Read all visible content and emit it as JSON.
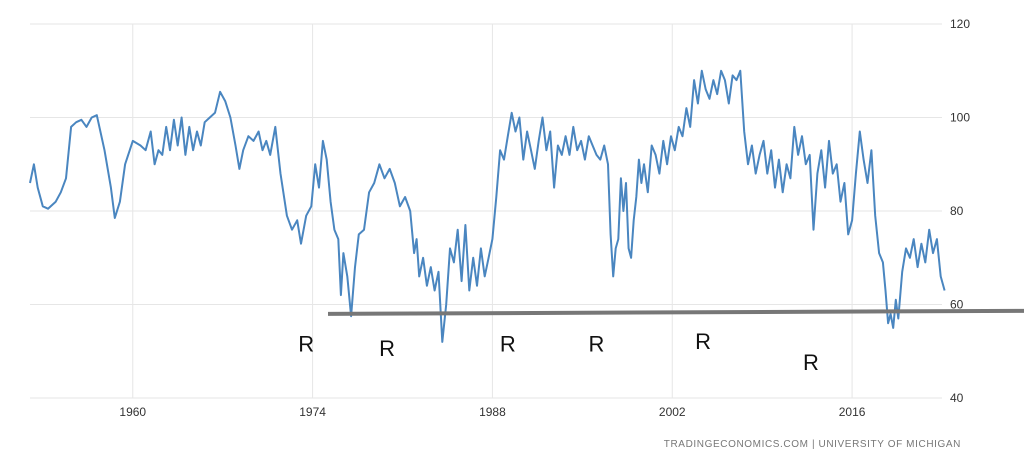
{
  "chart_data": {
    "type": "line",
    "title": "",
    "xlabel": "",
    "ylabel": "",
    "xlim": [
      1952,
      2023
    ],
    "ylim": [
      40,
      120
    ],
    "x_ticks": [
      1960,
      1974,
      1988,
      2002,
      2016
    ],
    "y_ticks": [
      40,
      60,
      80,
      100,
      120
    ],
    "y_axis_position": "right",
    "grid": true,
    "line_color": "#4a86c0",
    "series": [
      {
        "values": [
          [
            1952.0,
            86
          ],
          [
            1952.3,
            90
          ],
          [
            1952.6,
            85
          ],
          [
            1953.0,
            81
          ],
          [
            1953.4,
            80.5
          ],
          [
            1954.0,
            82
          ],
          [
            1954.4,
            84
          ],
          [
            1954.8,
            87
          ],
          [
            1955.2,
            98
          ],
          [
            1955.6,
            99
          ],
          [
            1956.0,
            99.5
          ],
          [
            1956.4,
            98
          ],
          [
            1956.8,
            100
          ],
          [
            1957.2,
            100.5
          ],
          [
            1957.8,
            93
          ],
          [
            1958.3,
            85
          ],
          [
            1958.6,
            78.5
          ],
          [
            1959.0,
            82
          ],
          [
            1959.4,
            90
          ],
          [
            1960.0,
            95
          ],
          [
            1960.6,
            94
          ],
          [
            1961.0,
            93
          ],
          [
            1961.4,
            97
          ],
          [
            1961.7,
            90
          ],
          [
            1962.0,
            93
          ],
          [
            1962.3,
            92
          ],
          [
            1962.6,
            98
          ],
          [
            1962.9,
            93
          ],
          [
            1963.2,
            99.5
          ],
          [
            1963.5,
            94
          ],
          [
            1963.8,
            100
          ],
          [
            1964.1,
            92
          ],
          [
            1964.4,
            98
          ],
          [
            1964.7,
            93
          ],
          [
            1965.0,
            97
          ],
          [
            1965.3,
            94
          ],
          [
            1965.6,
            99
          ],
          [
            1966.0,
            100
          ],
          [
            1966.4,
            101
          ],
          [
            1966.8,
            105.5
          ],
          [
            1967.2,
            103.5
          ],
          [
            1967.6,
            100
          ],
          [
            1968.0,
            94
          ],
          [
            1968.3,
            89
          ],
          [
            1968.6,
            93
          ],
          [
            1969.0,
            96
          ],
          [
            1969.4,
            95
          ],
          [
            1969.8,
            97
          ],
          [
            1970.1,
            93
          ],
          [
            1970.4,
            95
          ],
          [
            1970.7,
            92
          ],
          [
            1971.1,
            98
          ],
          [
            1971.5,
            88
          ],
          [
            1972.0,
            79
          ],
          [
            1972.4,
            76
          ],
          [
            1972.8,
            78
          ],
          [
            1973.1,
            73
          ],
          [
            1973.5,
            79
          ],
          [
            1973.9,
            81
          ],
          [
            1974.2,
            90
          ],
          [
            1974.5,
            85
          ],
          [
            1974.8,
            95
          ],
          [
            1975.1,
            91
          ],
          [
            1975.4,
            82
          ],
          [
            1975.7,
            76
          ],
          [
            1976.0,
            74
          ],
          [
            1976.2,
            62
          ],
          [
            1976.4,
            71
          ],
          [
            1976.7,
            66
          ],
          [
            1977.0,
            57.5
          ],
          [
            1977.3,
            68
          ],
          [
            1977.6,
            75
          ],
          [
            1978.0,
            76
          ],
          [
            1978.4,
            84
          ],
          [
            1978.8,
            86
          ],
          [
            1979.2,
            90
          ],
          [
            1979.6,
            87
          ],
          [
            1980.0,
            89
          ],
          [
            1980.4,
            86
          ],
          [
            1980.8,
            81
          ],
          [
            1981.2,
            83
          ],
          [
            1981.6,
            80
          ],
          [
            1981.9,
            71
          ],
          [
            1982.1,
            74
          ],
          [
            1982.3,
            66
          ],
          [
            1982.6,
            70
          ],
          [
            1982.9,
            64
          ],
          [
            1983.2,
            68
          ],
          [
            1983.5,
            63
          ],
          [
            1983.8,
            67
          ],
          [
            1984.1,
            52
          ],
          [
            1984.4,
            60
          ],
          [
            1984.7,
            72
          ],
          [
            1985.0,
            69
          ],
          [
            1985.3,
            76
          ],
          [
            1985.6,
            65
          ],
          [
            1985.9,
            77
          ],
          [
            1986.2,
            63
          ],
          [
            1986.5,
            70
          ],
          [
            1986.8,
            64
          ],
          [
            1987.1,
            72
          ],
          [
            1987.4,
            66
          ],
          [
            1987.7,
            70
          ],
          [
            1988.0,
            74
          ],
          [
            1988.3,
            83
          ],
          [
            1988.6,
            93
          ],
          [
            1988.9,
            91
          ],
          [
            1989.2,
            96
          ],
          [
            1989.5,
            101
          ],
          [
            1989.8,
            97
          ],
          [
            1990.1,
            100
          ],
          [
            1990.4,
            91
          ],
          [
            1990.7,
            97
          ],
          [
            1991.0,
            93
          ],
          [
            1991.3,
            89
          ],
          [
            1991.6,
            95
          ],
          [
            1991.9,
            100
          ],
          [
            1992.2,
            93
          ],
          [
            1992.5,
            97
          ],
          [
            1992.8,
            85
          ],
          [
            1993.1,
            94
          ],
          [
            1993.4,
            92
          ],
          [
            1993.7,
            96
          ],
          [
            1994.0,
            92
          ],
          [
            1994.3,
            98
          ],
          [
            1994.6,
            93
          ],
          [
            1994.9,
            95
          ],
          [
            1995.2,
            91
          ],
          [
            1995.5,
            96
          ],
          [
            1995.8,
            94
          ],
          [
            1996.1,
            92
          ],
          [
            1996.4,
            91
          ],
          [
            1996.7,
            94
          ],
          [
            1997.0,
            90
          ],
          [
            1997.2,
            75
          ],
          [
            1997.4,
            66
          ],
          [
            1997.6,
            72
          ],
          [
            1997.8,
            74
          ],
          [
            1998.0,
            87
          ],
          [
            1998.2,
            80
          ],
          [
            1998.4,
            86
          ],
          [
            1998.6,
            72
          ],
          [
            1998.8,
            70
          ],
          [
            1999.0,
            78
          ],
          [
            1999.2,
            83
          ],
          [
            1999.4,
            91
          ],
          [
            1999.6,
            86
          ],
          [
            1999.8,
            90
          ],
          [
            2000.1,
            84
          ],
          [
            2000.4,
            94
          ],
          [
            2000.7,
            92
          ],
          [
            2001.0,
            88
          ],
          [
            2001.3,
            95
          ],
          [
            2001.6,
            90
          ],
          [
            2001.9,
            96
          ],
          [
            2002.2,
            93
          ],
          [
            2002.5,
            98
          ],
          [
            2002.8,
            96
          ],
          [
            2003.1,
            102
          ],
          [
            2003.4,
            98
          ],
          [
            2003.7,
            108
          ],
          [
            2004.0,
            103
          ],
          [
            2004.3,
            110
          ],
          [
            2004.6,
            106
          ],
          [
            2004.9,
            104
          ],
          [
            2005.2,
            108
          ],
          [
            2005.5,
            105
          ],
          [
            2005.8,
            110
          ],
          [
            2006.1,
            108
          ],
          [
            2006.4,
            103
          ],
          [
            2006.7,
            109
          ],
          [
            2007.0,
            108
          ],
          [
            2007.3,
            110
          ],
          [
            2007.6,
            97
          ],
          [
            2007.9,
            90
          ],
          [
            2008.2,
            94
          ],
          [
            2008.5,
            88
          ],
          [
            2008.8,
            92
          ],
          [
            2009.1,
            95
          ],
          [
            2009.4,
            88
          ],
          [
            2009.7,
            93
          ],
          [
            2010.0,
            85
          ],
          [
            2010.3,
            91
          ],
          [
            2010.6,
            84
          ],
          [
            2010.9,
            90
          ],
          [
            2011.2,
            87
          ],
          [
            2011.5,
            98
          ],
          [
            2011.8,
            92
          ],
          [
            2012.1,
            96
          ],
          [
            2012.4,
            90
          ],
          [
            2012.7,
            92
          ],
          [
            2013.0,
            76
          ],
          [
            2013.3,
            88
          ],
          [
            2013.6,
            93
          ],
          [
            2013.9,
            85
          ],
          [
            2014.2,
            95
          ],
          [
            2014.5,
            88
          ],
          [
            2014.8,
            90
          ],
          [
            2015.1,
            82
          ],
          [
            2015.4,
            86
          ],
          [
            2015.7,
            75
          ],
          [
            2016.0,
            78
          ],
          [
            2016.3,
            88
          ],
          [
            2016.6,
            97
          ],
          [
            2016.9,
            91
          ],
          [
            2017.2,
            86
          ],
          [
            2017.5,
            93
          ],
          [
            2017.8,
            79
          ],
          [
            2018.1,
            71
          ],
          [
            2018.4,
            69
          ],
          [
            2018.6,
            63
          ],
          [
            2018.8,
            56
          ],
          [
            2019.0,
            58
          ],
          [
            2019.2,
            55
          ],
          [
            2019.4,
            61
          ],
          [
            2019.6,
            57
          ],
          [
            2019.9,
            67
          ],
          [
            2020.2,
            72
          ],
          [
            2020.5,
            70
          ],
          [
            2020.8,
            74
          ],
          [
            2021.1,
            68
          ],
          [
            2021.4,
            73
          ],
          [
            2021.7,
            69
          ],
          [
            2022.0,
            76
          ],
          [
            2022.3,
            71
          ],
          [
            2022.6,
            74
          ],
          [
            2022.9,
            66
          ],
          [
            2023.2,
            63
          ]
        ]
      }
    ],
    "reference_line": {
      "y": 58,
      "x_start": 1975.2,
      "color": "#777777"
    },
    "annotations": [
      {
        "text": "R",
        "x": 1973.5,
        "y": 50
      },
      {
        "text": "R",
        "x": 1979.8,
        "y": 49
      },
      {
        "text": "R",
        "x": 1989.2,
        "y": 50
      },
      {
        "text": "R",
        "x": 1996.1,
        "y": 50
      },
      {
        "text": "R",
        "x": 2004.4,
        "y": 50.5
      },
      {
        "text": "R",
        "x": 2012.8,
        "y": 46
      }
    ]
  },
  "source": "TRADINGECONOMICS.COM  |  UNIVERSITY OF MICHIGAN"
}
